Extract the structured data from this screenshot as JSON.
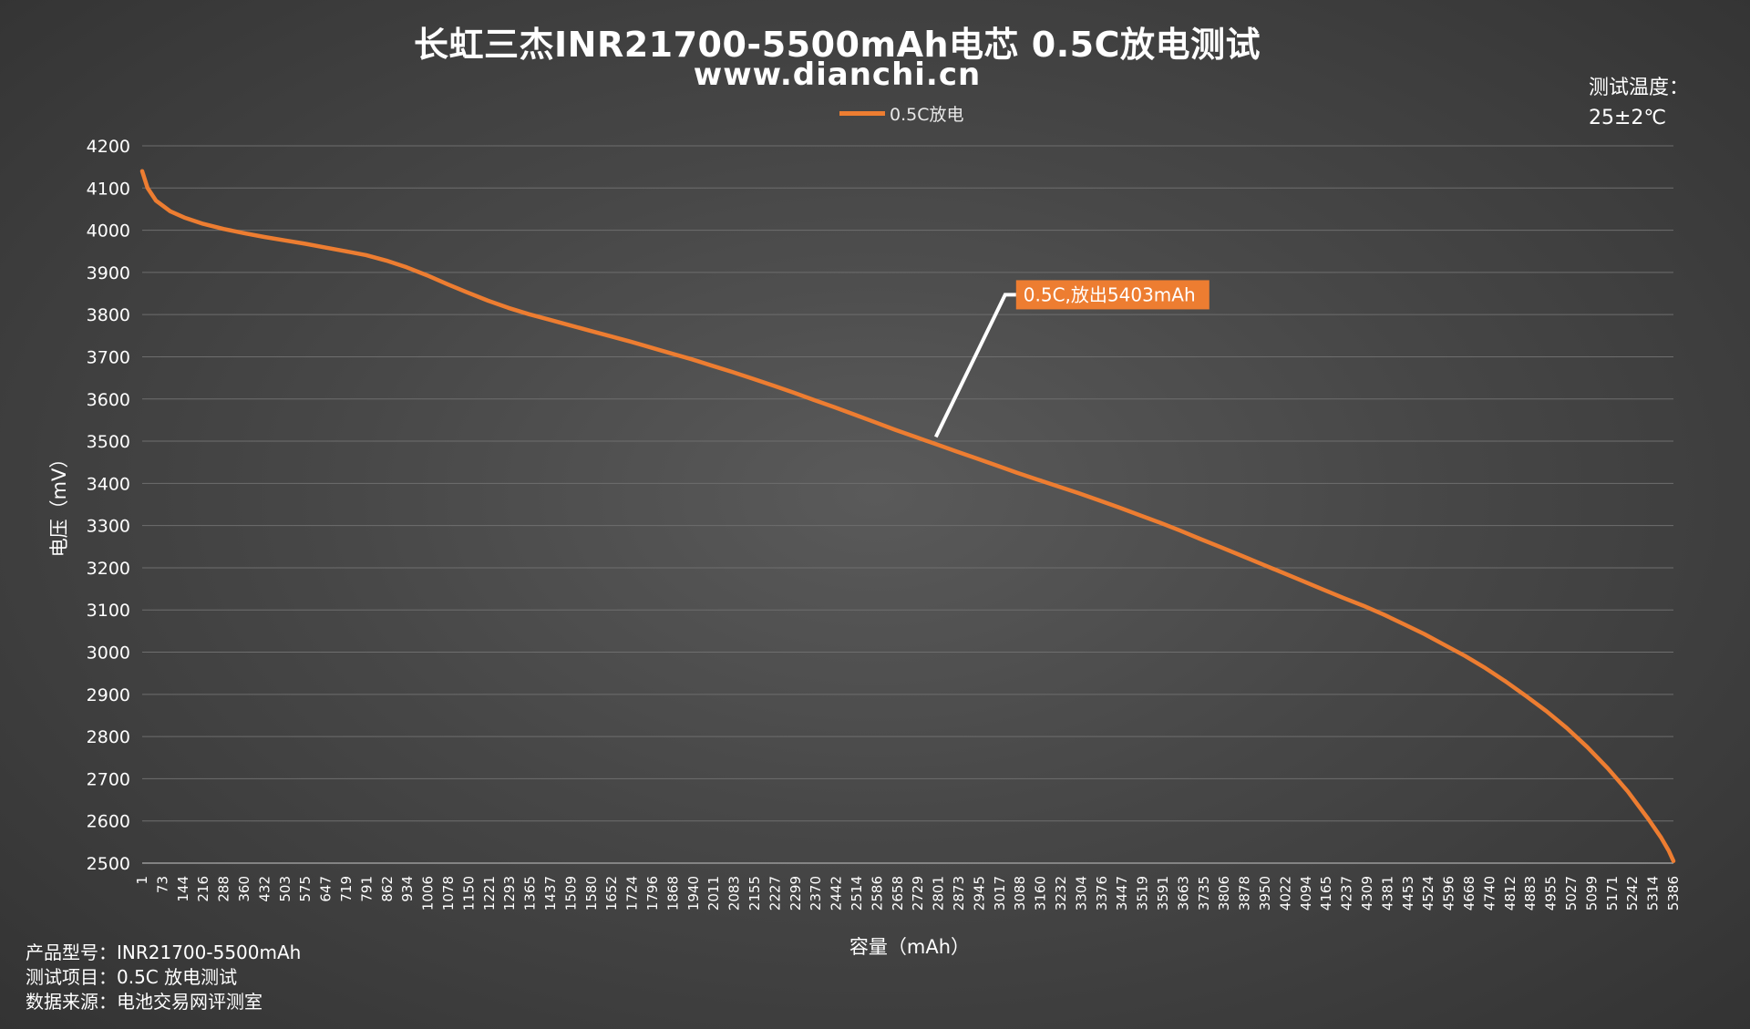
{
  "header": {
    "title": "长虹三杰INR21700-5500mAh电芯 0.5C放电测试",
    "subtitle": "www.dianchi.cn",
    "temp_label": "测试温度：",
    "temp_value": "25±2℃"
  },
  "footer": {
    "model_label": "产品型号：",
    "model_value": "INR21700-5500mAh",
    "item_label": "测试项目：",
    "item_value": "0.5C 放电测试",
    "source_label": "数据来源：",
    "source_value": "电池交易网评测室"
  },
  "chart_data": {
    "type": "line",
    "xlabel": "容量（mAh）",
    "ylabel": "电压（mV）",
    "ylim": [
      2500,
      4200
    ],
    "yticks": [
      2500,
      2600,
      2700,
      2800,
      2900,
      3000,
      3100,
      3200,
      3300,
      3400,
      3500,
      3600,
      3700,
      3800,
      3900,
      4000,
      4100,
      4200
    ],
    "xlim": [
      1,
      5403
    ],
    "x_tick_labels": [
      "1",
      "73",
      "144",
      "216",
      "288",
      "360",
      "432",
      "503",
      "575",
      "647",
      "719",
      "791",
      "862",
      "934",
      "1006",
      "1078",
      "1150",
      "1221",
      "1293",
      "1365",
      "1437",
      "1509",
      "1580",
      "1652",
      "1724",
      "1796",
      "1868",
      "1940",
      "2011",
      "2083",
      "2155",
      "2227",
      "2299",
      "2370",
      "2442",
      "2514",
      "2586",
      "2658",
      "2729",
      "2801",
      "2873",
      "2945",
      "3017",
      "3088",
      "3160",
      "3232",
      "3304",
      "3376",
      "3447",
      "3519",
      "3591",
      "3663",
      "3735",
      "3806",
      "3878",
      "3950",
      "4022",
      "4094",
      "4165",
      "4237",
      "4309",
      "4381",
      "4453",
      "4524",
      "4596",
      "4668",
      "4740",
      "4812",
      "4883",
      "4955",
      "5027",
      "5099",
      "5171",
      "5242",
      "5314",
      "5386"
    ],
    "grid": true,
    "legend_position": "top-center",
    "series": [
      {
        "name": "0.5C放电",
        "color": "#ed7d31",
        "x": [
          1,
          20,
          50,
          100,
          150,
          216,
          288,
          360,
          432,
          503,
          575,
          647,
          719,
          791,
          862,
          934,
          1006,
          1078,
          1150,
          1221,
          1293,
          1365,
          1437,
          1509,
          1580,
          1652,
          1724,
          1796,
          1868,
          1940,
          2011,
          2083,
          2155,
          2227,
          2299,
          2370,
          2442,
          2514,
          2586,
          2658,
          2729,
          2801,
          2873,
          2945,
          3017,
          3088,
          3160,
          3232,
          3304,
          3376,
          3447,
          3519,
          3591,
          3663,
          3735,
          3806,
          3878,
          3950,
          4022,
          4094,
          4165,
          4237,
          4309,
          4381,
          4453,
          4524,
          4596,
          4668,
          4740,
          4812,
          4883,
          4955,
          5027,
          5099,
          5171,
          5242,
          5314,
          5360,
          5386,
          5403
        ],
        "y": [
          4140,
          4100,
          4070,
          4045,
          4030,
          4015,
          4003,
          3993,
          3984,
          3976,
          3968,
          3959,
          3950,
          3941,
          3928,
          3912,
          3893,
          3872,
          3852,
          3833,
          3816,
          3801,
          3788,
          3775,
          3762,
          3749,
          3736,
          3722,
          3708,
          3694,
          3679,
          3664,
          3648,
          3632,
          3615,
          3598,
          3581,
          3563,
          3545,
          3527,
          3510,
          3493,
          3476,
          3459,
          3442,
          3425,
          3409,
          3393,
          3377,
          3360,
          3343,
          3325,
          3307,
          3288,
          3268,
          3249,
          3229,
          3209,
          3189,
          3169,
          3149,
          3129,
          3110,
          3089,
          3066,
          3043,
          3017,
          2991,
          2962,
          2930,
          2896,
          2860,
          2820,
          2775,
          2725,
          2670,
          2605,
          2560,
          2530,
          2505
        ]
      }
    ],
    "annotation": {
      "text": "0.5C,放出5403mAh",
      "x": 2801,
      "y": 3510
    }
  }
}
